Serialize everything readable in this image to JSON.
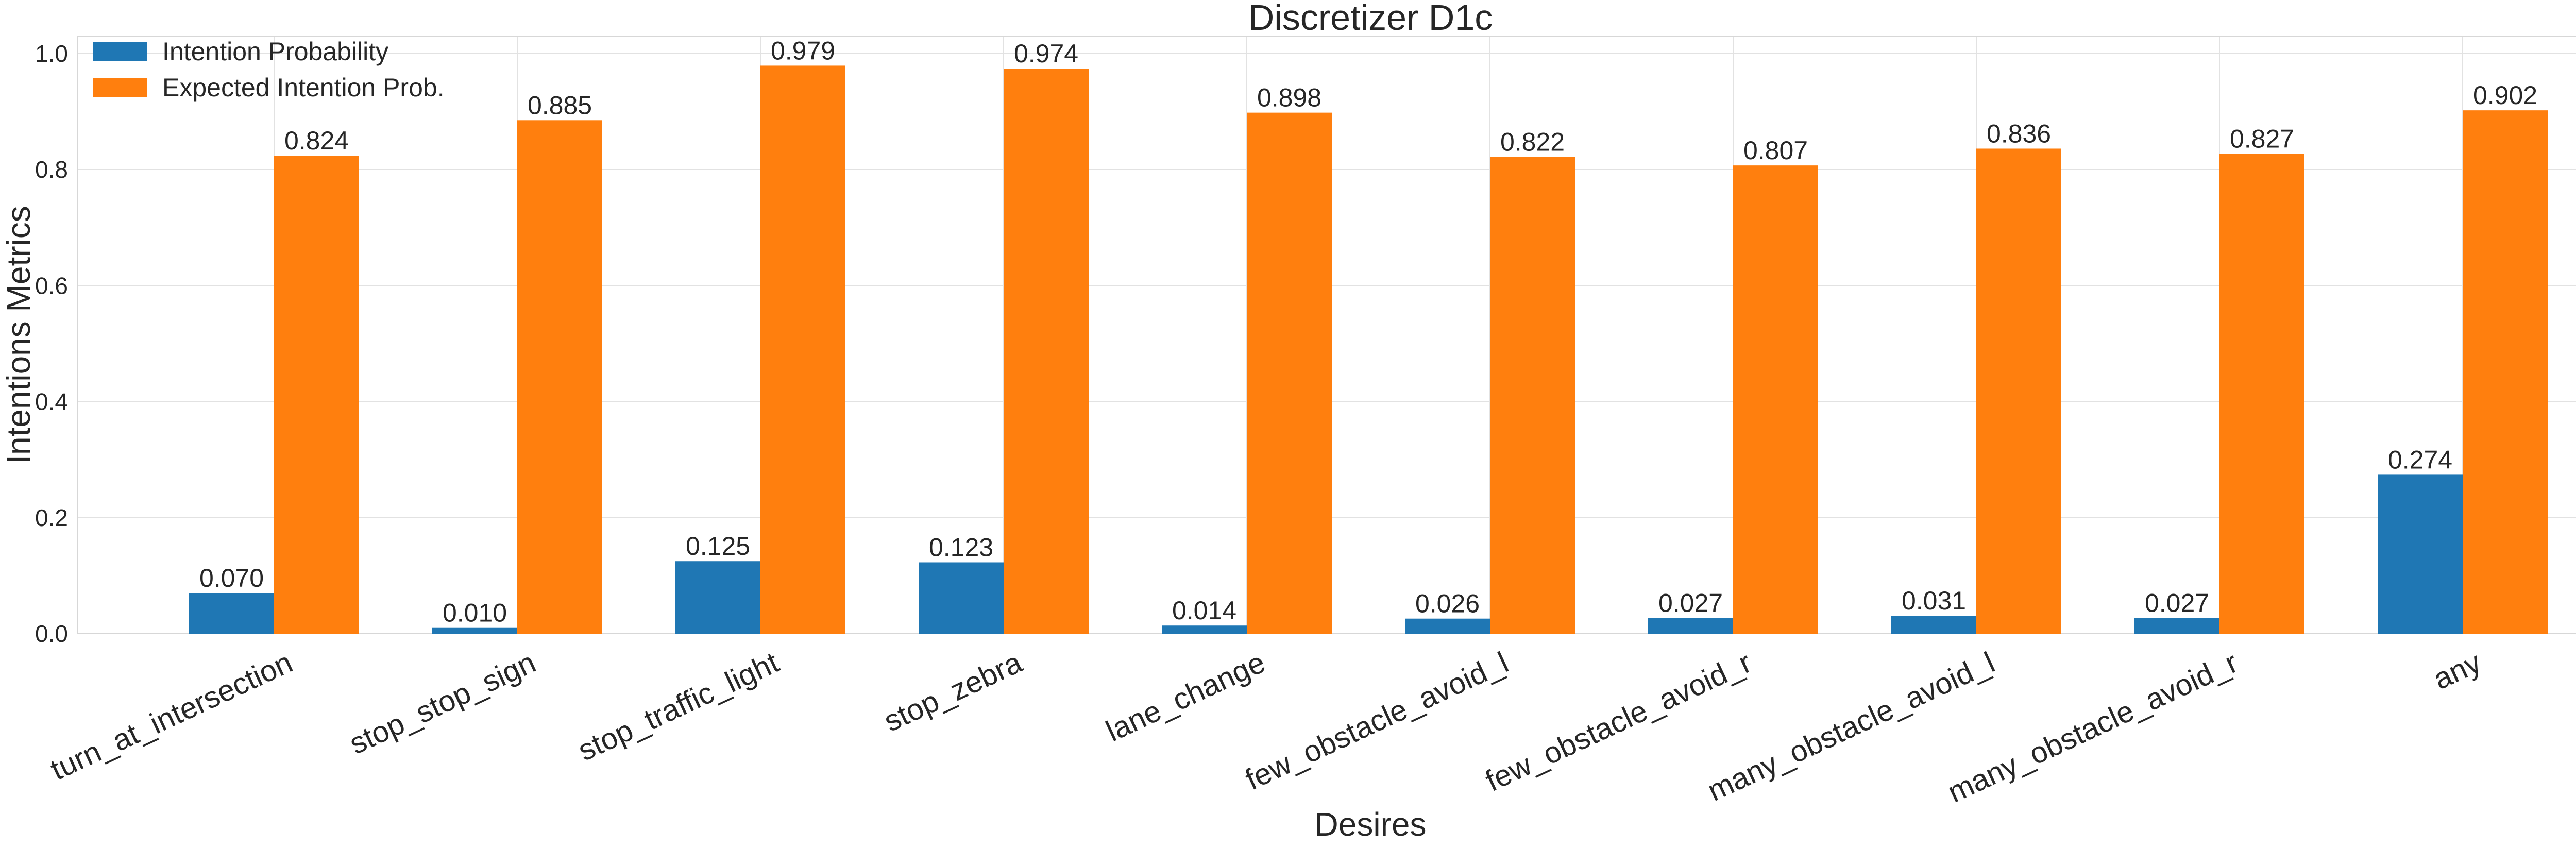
{
  "chart_data": {
    "type": "bar",
    "title": "Discretizer D1c",
    "xlabel": "Desires",
    "ylabel": "Intentions Metrics",
    "ylim": [
      0,
      1.03
    ],
    "yticks": [
      0.0,
      0.2,
      0.4,
      0.6,
      0.8,
      1.0
    ],
    "ytick_labels": [
      "0.0",
      "0.2",
      "0.4",
      "0.6",
      "0.8",
      "1.0"
    ],
    "grid": true,
    "legend_position": "top-left",
    "categories": [
      "turn_at_intersection",
      "stop_stop_sign",
      "stop_traffic_light",
      "stop_zebra",
      "lane_change",
      "few_obstacle_avoid_l",
      "few_obstacle_avoid_r",
      "many_obstacle_avoid_l",
      "many_obstacle_avoid_r",
      "any"
    ],
    "series": [
      {
        "name": "Intention Probability",
        "color": "#1f77b4",
        "values": [
          0.07,
          0.01,
          0.125,
          0.123,
          0.014,
          0.026,
          0.027,
          0.031,
          0.027,
          0.274
        ],
        "labels": [
          "0.070",
          "0.010",
          "0.125",
          "0.123",
          "0.014",
          "0.026",
          "0.027",
          "0.031",
          "0.027",
          "0.274"
        ]
      },
      {
        "name": "Expected Intention Prob.",
        "color": "#ff7f0e",
        "values": [
          0.824,
          0.885,
          0.979,
          0.974,
          0.898,
          0.822,
          0.807,
          0.836,
          0.827,
          0.902
        ],
        "labels": [
          "0.824",
          "0.885",
          "0.979",
          "0.974",
          "0.898",
          "0.822",
          "0.807",
          "0.836",
          "0.827",
          "0.902"
        ]
      }
    ]
  }
}
